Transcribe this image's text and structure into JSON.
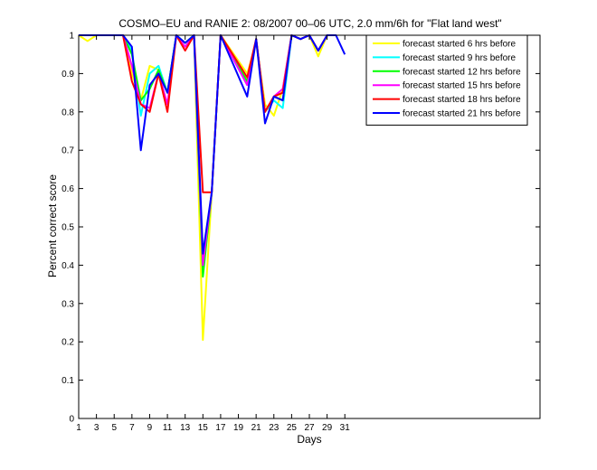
{
  "chart_data": {
    "type": "line",
    "title": "COSMO–EU and RANIE 2: 08/2007 00–06 UTC, 2.0 mm/6h for \"Flat land west\"",
    "xlabel": "Days",
    "ylabel": "Percent correct score",
    "xlim": [
      1,
      53
    ],
    "ylim": [
      0,
      1
    ],
    "xticks": [
      1,
      3,
      5,
      7,
      9,
      11,
      13,
      15,
      17,
      19,
      21,
      23,
      25,
      27,
      29,
      31
    ],
    "yticks": [
      0,
      0.1,
      0.2,
      0.3,
      0.4,
      0.5,
      0.6,
      0.7,
      0.8,
      0.9,
      1
    ],
    "grid": false,
    "legend_position": "top-right",
    "series": [
      {
        "name": "forecast started 6 hrs before",
        "color": "#ffff00",
        "x": [
          1,
          2,
          3,
          5,
          6,
          7,
          8,
          9,
          10,
          11,
          12,
          13,
          14,
          15,
          16,
          17,
          20,
          21,
          22,
          23,
          24,
          25,
          26,
          27,
          28,
          29,
          30
        ],
        "y": [
          1.0,
          0.985,
          1.0,
          1.0,
          1.0,
          0.9,
          0.83,
          0.92,
          0.91,
          0.85,
          1.0,
          0.97,
          1.0,
          0.205,
          0.59,
          1.0,
          0.9,
          0.98,
          0.82,
          0.79,
          0.86,
          1.0,
          0.99,
          1.0,
          0.945,
          1.0,
          1.0
        ]
      },
      {
        "name": "forecast started 9 hrs before",
        "color": "#00ffff",
        "x": [
          1,
          2,
          3,
          5,
          6,
          7,
          8,
          9,
          10,
          11,
          12,
          13,
          14,
          15,
          16,
          17,
          20,
          21,
          22,
          23,
          24,
          25,
          26,
          27,
          28,
          29,
          30
        ],
        "y": [
          1.0,
          1.0,
          1.0,
          1.0,
          1.0,
          0.96,
          0.79,
          0.9,
          0.92,
          0.85,
          1.0,
          0.98,
          1.0,
          0.38,
          0.59,
          1.0,
          0.87,
          0.99,
          0.8,
          0.83,
          0.81,
          1.0,
          0.99,
          1.0,
          0.96,
          1.0,
          1.0
        ]
      },
      {
        "name": "forecast started 12 hrs before",
        "color": "#00ff00",
        "x": [
          1,
          2,
          3,
          5,
          6,
          7,
          8,
          9,
          10,
          11,
          12,
          13,
          14,
          15,
          16,
          17,
          20,
          21,
          22,
          23,
          24,
          25,
          26,
          27,
          28,
          29,
          30
        ],
        "y": [
          1.0,
          1.0,
          1.0,
          1.0,
          1.0,
          0.95,
          0.83,
          0.86,
          0.91,
          0.85,
          1.0,
          0.98,
          1.0,
          0.37,
          0.59,
          1.0,
          0.88,
          0.99,
          0.8,
          0.84,
          0.83,
          1.0,
          0.99,
          1.0,
          0.96,
          1.0,
          1.0
        ]
      },
      {
        "name": "forecast started 15 hrs before",
        "color": "#ff00ff",
        "x": [
          1,
          2,
          3,
          5,
          6,
          7,
          8,
          9,
          10,
          11,
          12,
          13,
          14,
          15,
          16,
          17,
          20,
          21,
          22,
          23,
          24,
          25,
          26,
          27,
          28,
          29,
          30
        ],
        "y": [
          1.0,
          1.0,
          1.0,
          1.0,
          1.0,
          0.92,
          0.82,
          0.81,
          0.9,
          0.82,
          1.0,
          0.97,
          1.0,
          0.4,
          0.59,
          1.0,
          0.87,
          0.99,
          0.8,
          0.84,
          0.86,
          1.0,
          0.99,
          1.0,
          0.96,
          1.0,
          1.0
        ]
      },
      {
        "name": "forecast started 18 hrs before",
        "color": "#ff0000",
        "x": [
          1,
          2,
          3,
          5,
          6,
          7,
          8,
          9,
          10,
          11,
          12,
          13,
          14,
          15,
          16,
          17,
          20,
          21,
          22,
          23,
          24,
          25,
          26,
          27,
          28,
          29,
          30
        ],
        "y": [
          1.0,
          1.0,
          1.0,
          1.0,
          1.0,
          0.88,
          0.82,
          0.8,
          0.9,
          0.8,
          1.0,
          0.96,
          1.0,
          0.59,
          0.59,
          1.0,
          0.89,
          0.99,
          0.8,
          0.84,
          0.85,
          1.0,
          0.99,
          1.0,
          0.96,
          1.0,
          1.0
        ]
      },
      {
        "name": "forecast started 21 hrs before",
        "color": "#0000ff",
        "x": [
          1,
          2,
          3,
          5,
          6,
          7,
          8,
          9,
          10,
          11,
          12,
          13,
          14,
          15,
          16,
          17,
          20,
          21,
          22,
          23,
          24,
          25,
          26,
          27,
          28,
          29,
          30,
          31
        ],
        "y": [
          1.0,
          1.0,
          1.0,
          1.0,
          1.0,
          0.97,
          0.7,
          0.87,
          0.9,
          0.85,
          1.0,
          0.98,
          1.0,
          0.43,
          0.59,
          1.0,
          0.84,
          0.99,
          0.77,
          0.84,
          0.83,
          1.0,
          0.99,
          1.0,
          0.96,
          1.0,
          1.0,
          0.95
        ]
      }
    ]
  }
}
